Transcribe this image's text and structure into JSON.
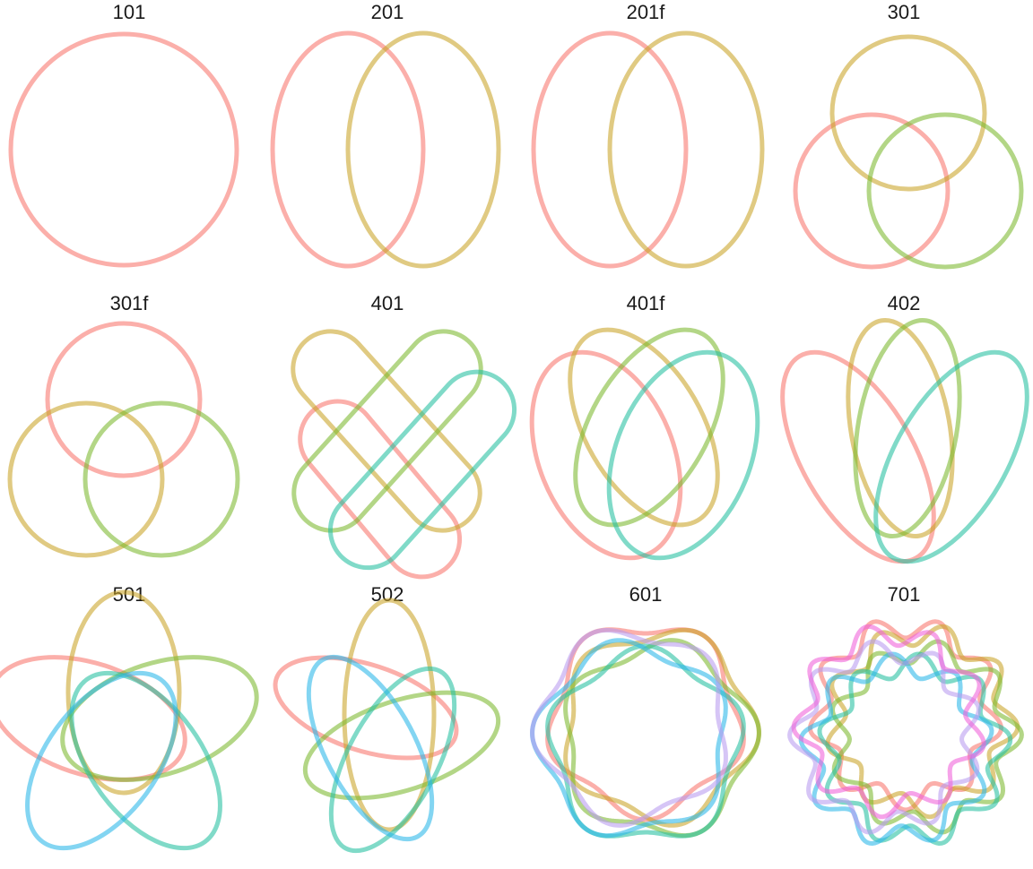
{
  "colors": {
    "red": "#F8766D",
    "yellow": "#C9A427",
    "green": "#7CB82F",
    "teal": "#25BFA0",
    "blue": "#2AB6E8",
    "purple": "#B89BF0",
    "magenta": "#F061D9"
  },
  "panels": [
    {
      "title": "101"
    },
    {
      "title": "201"
    },
    {
      "title": "201f"
    },
    {
      "title": "301"
    },
    {
      "title": "301f"
    },
    {
      "title": "401"
    },
    {
      "title": "401f"
    },
    {
      "title": "402"
    },
    {
      "title": "501"
    },
    {
      "title": "502"
    },
    {
      "title": "601"
    },
    {
      "title": "701"
    }
  ]
}
